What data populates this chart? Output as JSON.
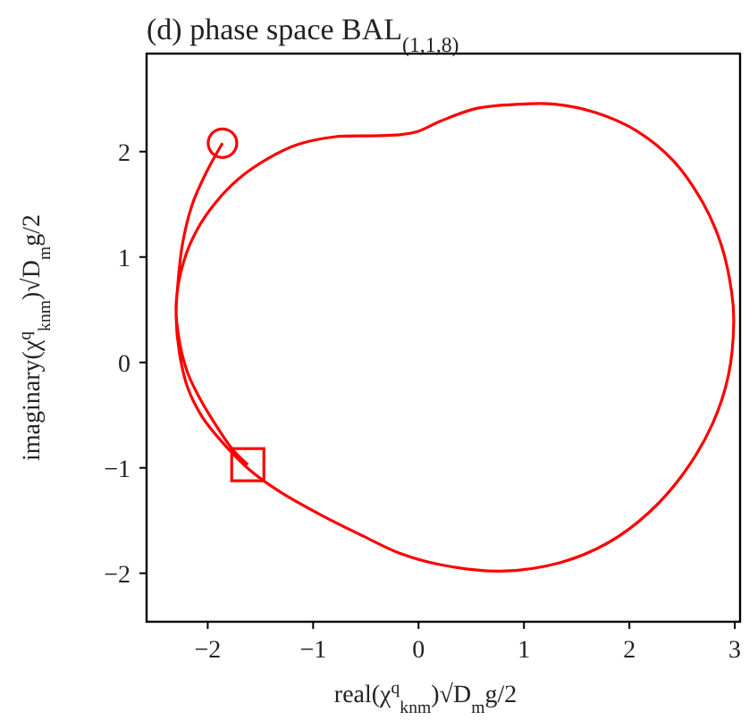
{
  "chart_data": {
    "type": "line",
    "title": "(d) phase space BAL$_{(1,1,8)}$",
    "xlabel": "real(χ$^{q}$$_{knm}$)√D$_{m}$g/2",
    "ylabel": "imaginary(χ$^{q}$$_{knm}$)√D$_{m}$g/2",
    "xlim": [
      -2.58,
      3.05
    ],
    "ylim": [
      -2.46,
      2.93
    ],
    "xticks": [
      {
        "value": -2,
        "label": "−2"
      },
      {
        "value": -1,
        "label": "−1"
      },
      0,
      1,
      2,
      3
    ],
    "yticks": [
      {
        "value": -2,
        "label": "−2"
      },
      {
        "value": -1,
        "label": "−1"
      },
      0,
      1,
      2
    ],
    "grid": false,
    "series": [
      {
        "color": "#ff0000",
        "marker": "none",
        "line_style": "solid",
        "x": [
          -1.86,
          -2.02,
          -2.15,
          -2.24,
          -2.28,
          -2.3,
          -2.27,
          -2.19,
          -2.05,
          -1.85,
          -1.59,
          -1.31,
          -0.92,
          -0.52,
          -0.18,
          0.21,
          0.78,
          1.34,
          1.8,
          2.19,
          2.53,
          2.79,
          2.94,
          2.99,
          2.97,
          2.87,
          2.7,
          2.42,
          2.08,
          1.68,
          1.29,
          0.95,
          0.55,
          0.21,
          -0.01,
          -0.18,
          -0.46,
          -0.8,
          -1.14,
          -1.42,
          -1.71,
          -1.93,
          -2.1,
          -2.23,
          -2.3,
          -2.27,
          -2.19,
          -2.07,
          -1.9,
          -1.76,
          -1.62
        ],
        "values": [
          2.08,
          1.79,
          1.49,
          1.12,
          0.78,
          0.44,
          0.1,
          -0.24,
          -0.52,
          -0.77,
          -1.03,
          -1.23,
          -1.45,
          -1.65,
          -1.81,
          -1.92,
          -1.98,
          -1.9,
          -1.71,
          -1.42,
          -1.03,
          -0.58,
          -0.12,
          0.38,
          0.67,
          1.12,
          1.51,
          1.91,
          2.19,
          2.37,
          2.45,
          2.45,
          2.41,
          2.29,
          2.19,
          2.16,
          2.15,
          2.14,
          2.07,
          1.94,
          1.74,
          1.51,
          1.26,
          0.95,
          0.55,
          0.21,
          -0.1,
          -0.35,
          -0.63,
          -0.83,
          -0.97
        ]
      },
      {
        "type": "scatter",
        "color": "#ff0000",
        "marker": "circle",
        "x": [
          -1.86
        ],
        "values": [
          2.08
        ]
      },
      {
        "type": "scatter",
        "color": "#ff0000",
        "marker": "square",
        "x": [
          -1.62
        ],
        "values": [
          -0.97
        ]
      }
    ]
  }
}
